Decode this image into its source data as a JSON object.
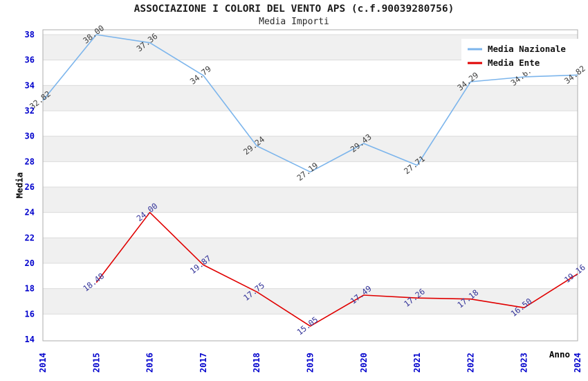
{
  "header": {
    "title": "ASSOCIAZIONE I COLORI DEL VENTO APS (c.f.90039280756)",
    "subtitle": "Media Importi"
  },
  "chart_data": {
    "type": "line",
    "title": "ASSOCIAZIONE I COLORI DEL VENTO APS (c.f.90039280756)",
    "subtitle": "Media Importi",
    "xlabel": "Anno",
    "ylabel": "Media",
    "x": [
      2014,
      2015,
      2016,
      2017,
      2018,
      2019,
      2020,
      2021,
      2022,
      2023,
      2024
    ],
    "series": [
      {
        "name": "Media Nazionale",
        "color": "#7CB5EC",
        "label_color": "#3f3f3f",
        "values": [
          32.82,
          38.0,
          37.36,
          34.79,
          29.24,
          27.19,
          29.43,
          27.71,
          34.29,
          34.67,
          34.82
        ],
        "labels": [
          "32.82",
          "38.00",
          "37.36",
          "34.79",
          "29.24",
          "27.19",
          "29.43",
          "27.71",
          "34.29",
          "34.67",
          "34.82"
        ]
      },
      {
        "name": "Media Ente",
        "color": "#E00000",
        "label_color": "#333399",
        "values": [
          null,
          18.48,
          24.0,
          19.87,
          17.75,
          15.05,
          17.49,
          17.26,
          17.18,
          16.5,
          19.16
        ],
        "labels": [
          "",
          "18.48",
          "24.00",
          "19.87",
          "17.75",
          "15.05",
          "17.49",
          "17.26",
          "17.18",
          "16.50",
          "19.16"
        ]
      }
    ],
    "ylim": [
      14,
      38
    ],
    "yticks": [
      14,
      16,
      18,
      20,
      22,
      24,
      26,
      28,
      30,
      32,
      34,
      36,
      38
    ],
    "grid": true,
    "band_fill": "#f0f0f0",
    "grid_color": "#dcdcdc",
    "border_color": "#adadad",
    "tick_color": "#0000cc",
    "legend_position": "top-right",
    "legend_entries": [
      "Media Nazionale",
      "Media Ente"
    ]
  }
}
